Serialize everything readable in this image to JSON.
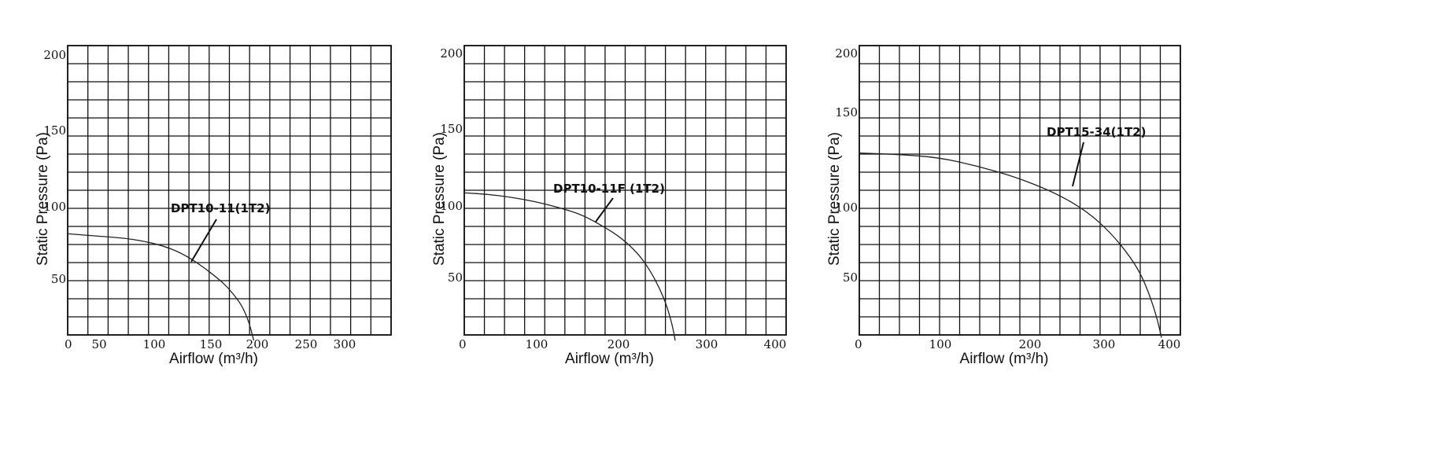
{
  "chart_data": [
    {
      "type": "line",
      "xlabel": "Airflow (m³/h)",
      "ylabel": "Static Pressure (Pa)",
      "x_ticks": [
        0,
        50,
        100,
        150,
        200,
        250,
        300
      ],
      "y_ticks": [
        50,
        100,
        150,
        200
      ],
      "grid": true,
      "series": [
        {
          "name": "DPT10-11(1T2)",
          "x": [
            0,
            20,
            40,
            60,
            80,
            100,
            120,
            140,
            160,
            170,
            180,
            185,
            190,
            194,
            197
          ],
          "y": [
            81,
            80,
            79,
            78,
            76,
            73,
            68,
            60,
            50,
            44,
            36,
            31,
            24,
            16,
            8
          ]
        }
      ]
    },
    {
      "type": "line",
      "xlabel": "Airflow (m³/h)",
      "ylabel": "Static Pressure (Pa)",
      "x_ticks": [
        0,
        100,
        200,
        300,
        400
      ],
      "y_ticks": [
        50,
        100,
        150,
        200
      ],
      "grid": true,
      "series": [
        {
          "name": "DPT10-11F (1T2)",
          "x": [
            0,
            30,
            60,
            90,
            120,
            150,
            180,
            200,
            220,
            235,
            248,
            258,
            265,
            268
          ],
          "y": [
            109,
            108,
            106,
            103,
            99,
            94,
            85,
            78,
            68,
            57,
            44,
            31,
            17,
            8
          ]
        }
      ]
    },
    {
      "type": "line",
      "xlabel": "Airflow (m³/h)",
      "ylabel": "Static Pressure (Pa)",
      "x_ticks": [
        0,
        100,
        200,
        300,
        400
      ],
      "y_ticks": [
        50,
        100,
        150,
        200
      ],
      "grid": true,
      "series": [
        {
          "name": "DPT15-34(1T2)",
          "x": [
            0,
            50,
            100,
            150,
            200,
            250,
            290,
            320,
            345,
            360,
            372,
            380,
            384
          ],
          "y": [
            137,
            136,
            134,
            128,
            120,
            109,
            96,
            81,
            64,
            50,
            33,
            18,
            8
          ]
        }
      ]
    }
  ]
}
